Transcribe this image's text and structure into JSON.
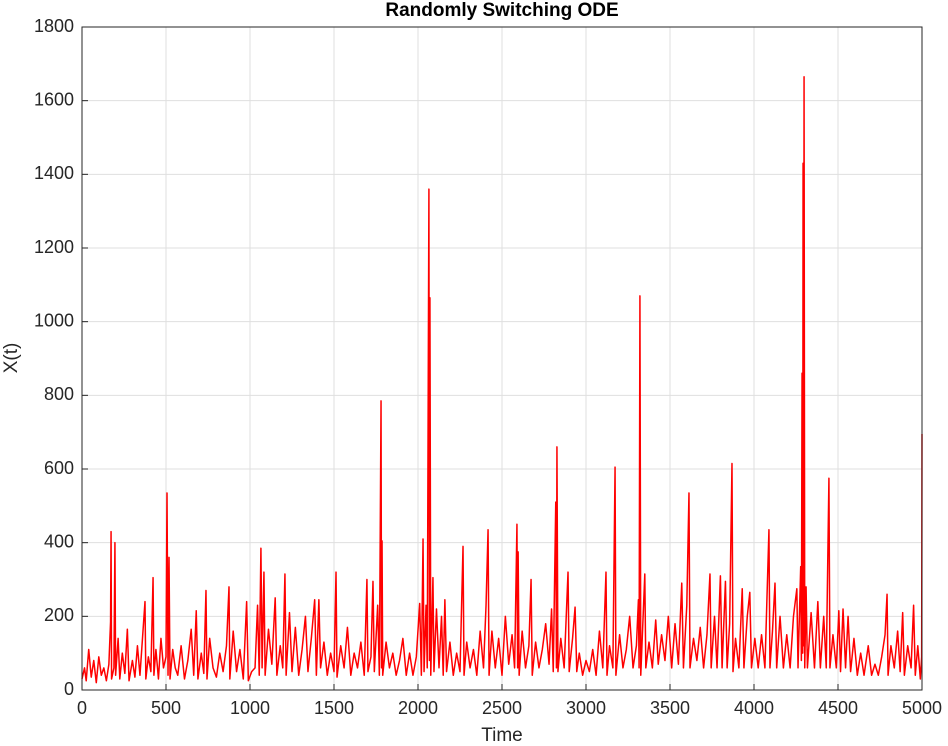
{
  "chart_data": {
    "type": "line",
    "title": "Randomly Switching ODE",
    "x_label": "Time",
    "y_label": "X(t)",
    "color": "#ff0000",
    "grid": true,
    "xlim": [
      0,
      5000
    ],
    "ylim": [
      0,
      1800
    ],
    "xticks": [
      0,
      500,
      1000,
      1500,
      2000,
      2500,
      3000,
      3500,
      4000,
      4500,
      5000
    ],
    "yticks": [
      0,
      200,
      400,
      600,
      800,
      1000,
      1200,
      1400,
      1600,
      1800
    ],
    "x": [
      0,
      15,
      25,
      40,
      55,
      70,
      85,
      100,
      115,
      130,
      145,
      160,
      170,
      173,
      176,
      190,
      196,
      200,
      215,
      225,
      240,
      255,
      270,
      280,
      300,
      315,
      330,
      345,
      360,
      375,
      380,
      395,
      410,
      423,
      428,
      440,
      455,
      470,
      485,
      500,
      506,
      512,
      518,
      524,
      540,
      555,
      570,
      590,
      610,
      630,
      650,
      665,
      680,
      690,
      710,
      725,
      738,
      744,
      760,
      780,
      800,
      820,
      840,
      860,
      875,
      880,
      900,
      920,
      940,
      960,
      980,
      990,
      1010,
      1030,
      1045,
      1055,
      1065,
      1072,
      1083,
      1090,
      1110,
      1130,
      1150,
      1160,
      1180,
      1195,
      1208,
      1215,
      1235,
      1250,
      1270,
      1290,
      1310,
      1330,
      1345,
      1365,
      1385,
      1395,
      1410,
      1420,
      1440,
      1460,
      1480,
      1500,
      1512,
      1518,
      1540,
      1560,
      1580,
      1600,
      1620,
      1640,
      1660,
      1680,
      1696,
      1702,
      1720,
      1732,
      1740,
      1760,
      1770,
      1780,
      1783,
      1786,
      1790,
      1810,
      1830,
      1850,
      1870,
      1890,
      1910,
      1930,
      1950,
      1970,
      1990,
      2010,
      2020,
      2030,
      2036,
      2048,
      2055,
      2065,
      2068,
      2071,
      2076,
      2089,
      2095,
      2110,
      2125,
      2140,
      2150,
      2160,
      2170,
      2190,
      2210,
      2230,
      2250,
      2268,
      2274,
      2290,
      2310,
      2330,
      2350,
      2370,
      2390,
      2405,
      2417,
      2423,
      2440,
      2460,
      2480,
      2500,
      2520,
      2540,
      2560,
      2575,
      2589,
      2593,
      2596,
      2602,
      2620,
      2640,
      2660,
      2673,
      2680,
      2700,
      2720,
      2740,
      2760,
      2780,
      2795,
      2805,
      2820,
      2824,
      2827,
      2833,
      2850,
      2870,
      2893,
      2900,
      2920,
      2935,
      2945,
      2960,
      2980,
      3000,
      3020,
      3040,
      3060,
      3080,
      3100,
      3119,
      3125,
      3140,
      3160,
      3173,
      3178,
      3200,
      3220,
      3240,
      3260,
      3280,
      3300,
      3312,
      3316,
      3321,
      3326,
      3340,
      3350,
      3356,
      3375,
      3395,
      3415,
      3430,
      3450,
      3470,
      3490,
      3510,
      3530,
      3550,
      3570,
      3580,
      3600,
      3613,
      3619,
      3640,
      3660,
      3680,
      3700,
      3720,
      3738,
      3745,
      3765,
      3780,
      3800,
      3810,
      3830,
      3840,
      3855,
      3869,
      3875,
      3890,
      3910,
      3930,
      3940,
      3960,
      3975,
      3985,
      4005,
      4025,
      4045,
      4065,
      4089,
      4095,
      4110,
      4125,
      4135,
      4155,
      4175,
      4195,
      4215,
      4235,
      4255,
      4262,
      4278,
      4282,
      4286,
      4290,
      4292,
      4295,
      4298,
      4302,
      4310,
      4318,
      4340,
      4360,
      4380,
      4395,
      4415,
      4430,
      4446,
      4452,
      4470,
      4490,
      4505,
      4515,
      4530,
      4545,
      4560,
      4575,
      4595,
      4615,
      4635,
      4655,
      4680,
      4700,
      4720,
      4740,
      4760,
      4780,
      4792,
      4798,
      4815,
      4835,
      4855,
      4870,
      4885,
      4895,
      4915,
      4935,
      4950,
      4960,
      4975,
      4990,
      4998,
      5000
    ],
    "values": [
      30,
      60,
      25,
      110,
      35,
      80,
      20,
      90,
      40,
      60,
      25,
      70,
      185,
      430,
      30,
      60,
      400,
      40,
      140,
      30,
      100,
      45,
      165,
      25,
      80,
      35,
      120,
      40,
      140,
      240,
      30,
      90,
      50,
      305,
      40,
      110,
      30,
      140,
      60,
      90,
      535,
      40,
      360,
      30,
      110,
      60,
      40,
      120,
      30,
      80,
      165,
      40,
      215,
      30,
      100,
      45,
      270,
      30,
      140,
      60,
      35,
      100,
      50,
      120,
      280,
      30,
      160,
      50,
      110,
      30,
      240,
      25,
      50,
      60,
      230,
      40,
      385,
      60,
      320,
      40,
      165,
      70,
      250,
      40,
      120,
      60,
      315,
      40,
      210,
      50,
      170,
      40,
      110,
      200,
      50,
      140,
      245,
      40,
      245,
      60,
      130,
      40,
      100,
      50,
      320,
      35,
      120,
      60,
      170,
      40,
      100,
      60,
      130,
      40,
      300,
      50,
      90,
      295,
      50,
      230,
      40,
      785,
      60,
      405,
      40,
      130,
      60,
      100,
      40,
      80,
      140,
      40,
      100,
      40,
      90,
      235,
      40,
      410,
      50,
      230,
      60,
      1360,
      80,
      1065,
      40,
      305,
      50,
      220,
      60,
      200,
      40,
      245,
      50,
      130,
      40,
      100,
      50,
      390,
      40,
      130,
      60,
      110,
      40,
      160,
      60,
      230,
      435,
      40,
      160,
      60,
      140,
      40,
      200,
      70,
      150,
      60,
      450,
      60,
      375,
      40,
      160,
      60,
      120,
      300,
      40,
      130,
      60,
      110,
      180,
      70,
      220,
      50,
      510,
      60,
      660,
      50,
      140,
      60,
      320,
      50,
      140,
      225,
      50,
      100,
      40,
      80,
      50,
      110,
      40,
      160,
      60,
      320,
      40,
      120,
      60,
      605,
      40,
      150,
      60,
      110,
      200,
      60,
      120,
      245,
      60,
      1070,
      40,
      200,
      315,
      60,
      130,
      60,
      190,
      70,
      150,
      80,
      200,
      60,
      180,
      70,
      290,
      60,
      230,
      535,
      60,
      140,
      80,
      170,
      60,
      150,
      315,
      60,
      200,
      60,
      310,
      60,
      295,
      60,
      180,
      615,
      50,
      140,
      60,
      275,
      60,
      200,
      265,
      60,
      140,
      60,
      150,
      60,
      435,
      60,
      160,
      290,
      60,
      200,
      60,
      150,
      60,
      200,
      275,
      60,
      335,
      80,
      860,
      100,
      1430,
      120,
      1665,
      60,
      280,
      60,
      210,
      60,
      240,
      60,
      200,
      60,
      575,
      60,
      150,
      60,
      215,
      50,
      220,
      60,
      200,
      50,
      140,
      40,
      100,
      40,
      120,
      40,
      70,
      40,
      90,
      150,
      260,
      40,
      120,
      60,
      160,
      50,
      210,
      40,
      120,
      60,
      230,
      40,
      120,
      30,
      90,
      695
    ]
  }
}
